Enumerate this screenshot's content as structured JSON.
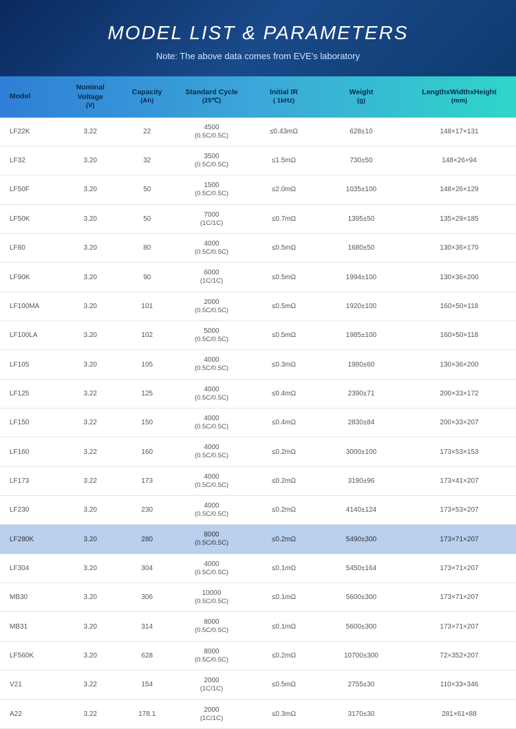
{
  "header": {
    "title": "MODEL LIST & PARAMETERS",
    "subtitle": "Note: The above data comes from EVE's laboratory"
  },
  "columns": [
    {
      "label": "Model",
      "sub": ""
    },
    {
      "label": "Nominal Voltage",
      "sub": "(V)"
    },
    {
      "label": "Capacity",
      "sub": "(Ah)"
    },
    {
      "label": "Standard Cycle",
      "sub": "(25℃)"
    },
    {
      "label": "Initial IR",
      "sub": "( 1kHz)"
    },
    {
      "label": "Weight",
      "sub": "(g)"
    },
    {
      "label": "LengthxWidthxHeight",
      "sub": "(mm)"
    }
  ],
  "rows": [
    {
      "model": "LF22K",
      "voltage": "3.22",
      "capacity": "22",
      "cycle": "4500",
      "cycle_sub": "(0.5C/0.5C)",
      "ir": "≤0.43mΩ",
      "weight": "628±10",
      "dim": "148×17×131",
      "hl": false
    },
    {
      "model": "LF32",
      "voltage": "3.20",
      "capacity": "32",
      "cycle": "3500",
      "cycle_sub": "(0.5C/0.5C)",
      "ir": "≤1.5mΩ",
      "weight": "730±50",
      "dim": "148×26×94",
      "hl": false
    },
    {
      "model": "LF50F",
      "voltage": "3.20",
      "capacity": "50",
      "cycle": "1500",
      "cycle_sub": "(0.5C/0.5C)",
      "ir": "≤2.0mΩ",
      "weight": "1035±100",
      "dim": "148×26×129",
      "hl": false
    },
    {
      "model": "LF50K",
      "voltage": "3.20",
      "capacity": "50",
      "cycle": "7000",
      "cycle_sub": "(1C/1C)",
      "ir": "≤0.7mΩ",
      "weight": "1395±50",
      "dim": "135×29×185",
      "hl": false
    },
    {
      "model": "LF80",
      "voltage": "3.20",
      "capacity": "80",
      "cycle": "4000",
      "cycle_sub": "(0.5C/0.5C)",
      "ir": "≤0.5mΩ",
      "weight": "1680±50",
      "dim": "130×36×170",
      "hl": false
    },
    {
      "model": "LF90K",
      "voltage": "3.20",
      "capacity": "90",
      "cycle": "6000",
      "cycle_sub": "(1C/1C)",
      "ir": "≤0.5mΩ",
      "weight": "1994±100",
      "dim": "130×36×200",
      "hl": false
    },
    {
      "model": "LF100MA",
      "voltage": "3.20",
      "capacity": "101",
      "cycle": "2000",
      "cycle_sub": "(0.5C/0.5C)",
      "ir": "≤0.5mΩ",
      "weight": "1920±100",
      "dim": "160×50×118",
      "hl": false
    },
    {
      "model": "LF100LA",
      "voltage": "3.20",
      "capacity": "102",
      "cycle": "5000",
      "cycle_sub": "(0.5C/0.5C)",
      "ir": "≤0.5mΩ",
      "weight": "1985±100",
      "dim": "160×50×118",
      "hl": false
    },
    {
      "model": "LF105",
      "voltage": "3.20",
      "capacity": "105",
      "cycle": "4000",
      "cycle_sub": "(0.5C/0.5C)",
      "ir": "≤0.3mΩ",
      "weight": "1980±60",
      "dim": "130×36×200",
      "hl": false
    },
    {
      "model": "LF125",
      "voltage": "3.22",
      "capacity": "125",
      "cycle": "4000",
      "cycle_sub": "(0.5C/0.5C)",
      "ir": "≤0.4mΩ",
      "weight": "2390±71",
      "dim": "200×33×172",
      "hl": false
    },
    {
      "model": "LF150",
      "voltage": "3.22",
      "capacity": "150",
      "cycle": "4000",
      "cycle_sub": "(0.5C/0.5C)",
      "ir": "≤0.4mΩ",
      "weight": "2830±84",
      "dim": "200×33×207",
      "hl": false
    },
    {
      "model": "LF160",
      "voltage": "3.22",
      "capacity": "160",
      "cycle": "4000",
      "cycle_sub": "(0.5C/0.5C)",
      "ir": "≤0.2mΩ",
      "weight": "3000±100",
      "dim": "173×53×153",
      "hl": false
    },
    {
      "model": "LF173",
      "voltage": "3.22",
      "capacity": "173",
      "cycle": "4000",
      "cycle_sub": "(0.5C/0.5C)",
      "ir": "≤0.2mΩ",
      "weight": "3190±96",
      "dim": "173×41×207",
      "hl": false
    },
    {
      "model": "LF230",
      "voltage": "3.20",
      "capacity": "230",
      "cycle": "4000",
      "cycle_sub": "(0.5C/0.5C)",
      "ir": "≤0.2mΩ",
      "weight": "4140±124",
      "dim": "173×53×207",
      "hl": false
    },
    {
      "model": "LF280K",
      "voltage": "3.20",
      "capacity": "280",
      "cycle": "8000",
      "cycle_sub": "(0.5C/0.5C)",
      "ir": "≤0.2mΩ",
      "weight": "5490±300",
      "dim": "173×71×207",
      "hl": true
    },
    {
      "model": "LF304",
      "voltage": "3.20",
      "capacity": "304",
      "cycle": "4000",
      "cycle_sub": "(0.5C/0.5C)",
      "ir": "≤0.1mΩ",
      "weight": "5450±164",
      "dim": "173×71×207",
      "hl": false
    },
    {
      "model": "MB30",
      "voltage": "3.20",
      "capacity": "306",
      "cycle": "10000",
      "cycle_sub": "(0.5C/0.5C)",
      "ir": "≤0.1mΩ",
      "weight": "5600±300",
      "dim": "173×71×207",
      "hl": false
    },
    {
      "model": "MB31",
      "voltage": "3.20",
      "capacity": "314",
      "cycle": "8000",
      "cycle_sub": "(0.5C/0.5C)",
      "ir": "≤0.1mΩ",
      "weight": "5600±300",
      "dim": "173×71×207",
      "hl": false
    },
    {
      "model": "LF560K",
      "voltage": "3.20",
      "capacity": "628",
      "cycle": "8000",
      "cycle_sub": "(0.5C/0.5C)",
      "ir": "≤0.2mΩ",
      "weight": "10700±300",
      "dim": "72×352×207",
      "hl": false
    },
    {
      "model": "V21",
      "voltage": "3.22",
      "capacity": "154",
      "cycle": "2000",
      "cycle_sub": "(1C/1C)",
      "ir": "≤0.5mΩ",
      "weight": "2755±30",
      "dim": "110×33×346",
      "hl": false
    },
    {
      "model": "A22",
      "voltage": "3.22",
      "capacity": "178.1",
      "cycle": "2000",
      "cycle_sub": "(1C/1C)",
      "ir": "≤0.3mΩ",
      "weight": "3170±30",
      "dim": "281×61×88",
      "hl": false
    }
  ],
  "style": {
    "header_gradient": [
      "#0a2a5e",
      "#1a4a8a",
      "#0d3a6e"
    ],
    "thead_gradient": [
      "#2f7fd6",
      "#3ba7d9",
      "#2fd6c9"
    ],
    "highlight_bg": "#b9d0ee",
    "row_border": "#e5e5e5",
    "text_color": "#555",
    "title_fontsize": 28,
    "subtitle_fontsize": 13,
    "body_fontsize": 10
  }
}
